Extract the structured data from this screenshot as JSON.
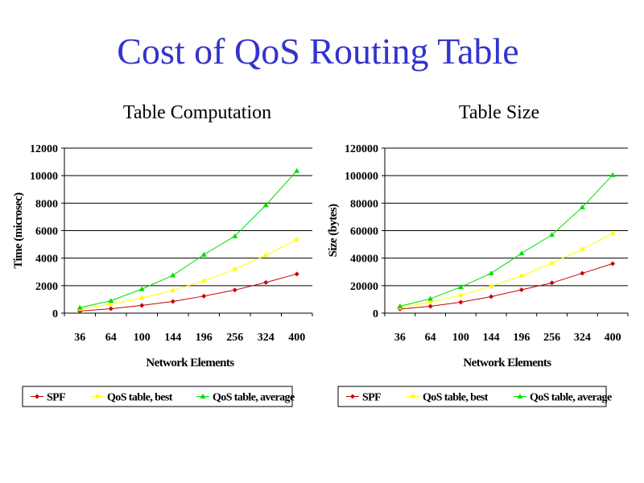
{
  "slide": {
    "title": "Cost of QoS Routing Table"
  },
  "colors": {
    "title": "#3333cc",
    "spf": "#cc0000",
    "best": "#ffff00",
    "average": "#00dd00"
  },
  "chart_data": [
    {
      "type": "line",
      "title": "Table Computation",
      "xlabel": "Network Elements",
      "ylabel": "Time (microsec)",
      "categories": [
        "36",
        "64",
        "100",
        "144",
        "196",
        "256",
        "324",
        "400"
      ],
      "ylim": [
        0,
        12000
      ],
      "yticks": [
        0,
        2000,
        4000,
        6000,
        8000,
        10000,
        12000
      ],
      "grid": true,
      "legend": "bottom",
      "series": [
        {
          "name": "SPF",
          "marker": "diamond",
          "values": [
            150,
            320,
            560,
            850,
            1240,
            1680,
            2230,
            2850
          ]
        },
        {
          "name": "QoS table, best",
          "marker": "circle",
          "values": [
            300,
            650,
            1100,
            1650,
            2350,
            3200,
            4200,
            5350
          ]
        },
        {
          "name": "QoS table, average",
          "marker": "triangle",
          "values": [
            400,
            900,
            1750,
            2750,
            4250,
            5600,
            7850,
            10350
          ]
        }
      ]
    },
    {
      "type": "line",
      "title": "Table Size",
      "xlabel": "Network Elements",
      "ylabel": "Size (bytes)",
      "categories": [
        "36",
        "64",
        "100",
        "144",
        "196",
        "256",
        "324",
        "400"
      ],
      "ylim": [
        0,
        120000
      ],
      "yticks": [
        0,
        20000,
        40000,
        60000,
        80000,
        100000,
        120000
      ],
      "grid": true,
      "legend": "bottom",
      "series": [
        {
          "name": "SPF",
          "marker": "diamond",
          "values": [
            3000,
            5000,
            8000,
            12000,
            17000,
            22000,
            29000,
            36000
          ]
        },
        {
          "name": "QoS table, best",
          "marker": "circle",
          "values": [
            4000,
            8000,
            13000,
            19500,
            27000,
            36500,
            46500,
            58000
          ]
        },
        {
          "name": "QoS table, average",
          "marker": "triangle",
          "values": [
            5000,
            10500,
            19000,
            29000,
            43500,
            57000,
            77000,
            100500
          ]
        }
      ]
    }
  ]
}
